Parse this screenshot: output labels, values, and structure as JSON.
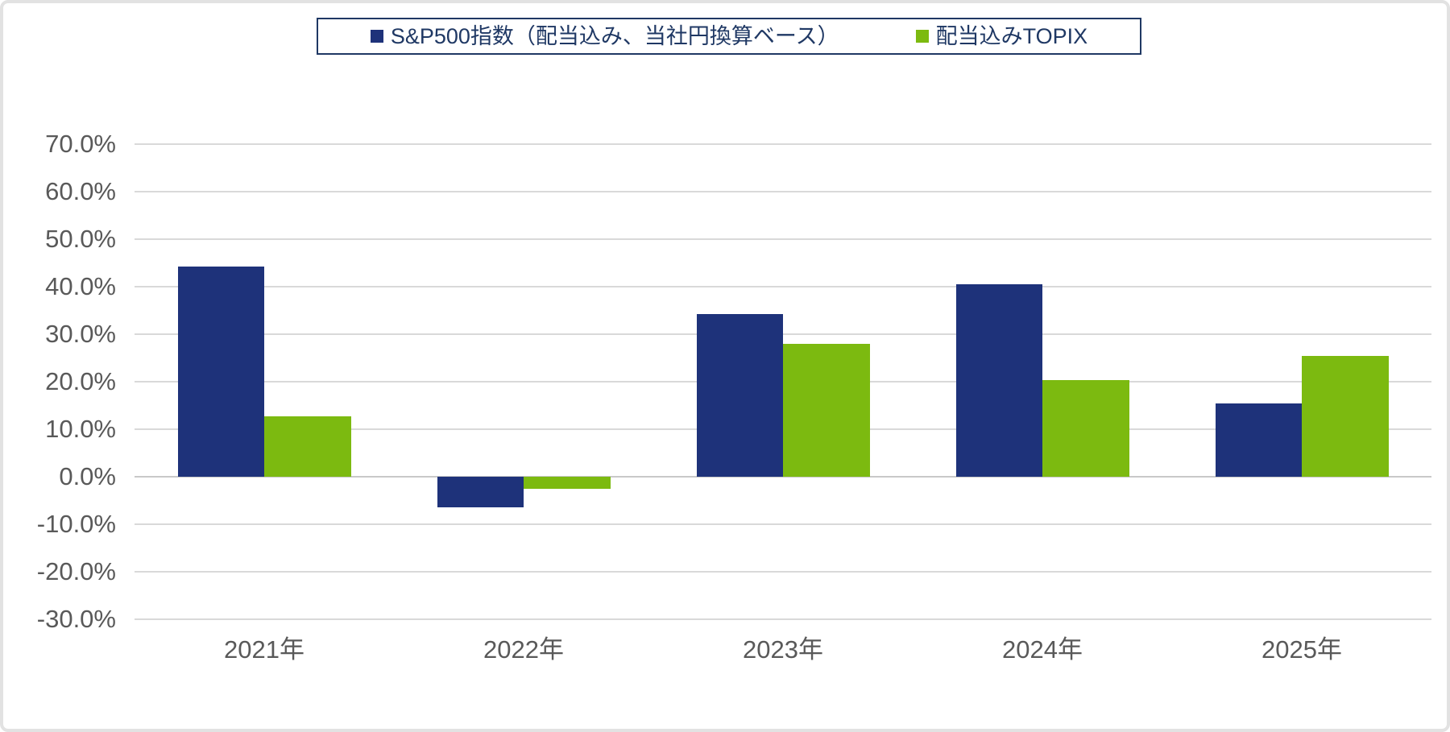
{
  "chart_data": {
    "type": "bar",
    "title": "",
    "categories": [
      "2021年",
      "2022年",
      "2023年",
      "2024年",
      "2025年"
    ],
    "series": [
      {
        "name": "S&P500指数（配当込み、当社円換算ベース）",
        "color": "#1e327a",
        "values": [
          44.3,
          -6.4,
          34.2,
          40.5,
          15.4
        ]
      },
      {
        "name": "配当込みTOPIX",
        "color": "#7cba10",
        "values": [
          12.7,
          -2.5,
          28.0,
          20.3,
          25.5
        ]
      }
    ],
    "ylim": [
      -30,
      70
    ],
    "ytick_step": 10,
    "ytick_labels": [
      "70.0%",
      "60.0%",
      "50.0%",
      "40.0%",
      "30.0%",
      "20.0%",
      "10.0%",
      "0.0%",
      "-10.0%",
      "-20.0%",
      "-30.0%"
    ],
    "grid": true,
    "legend_position": "top-center",
    "colors": {
      "background": "#ffffff",
      "frame_border": "#e2e2e2",
      "gridline": "#d9d9d9",
      "zero_line": "#c8c8c8",
      "axis_text": "#595959",
      "legend_text": "#1f3864",
      "legend_border": "#1f3864"
    }
  }
}
